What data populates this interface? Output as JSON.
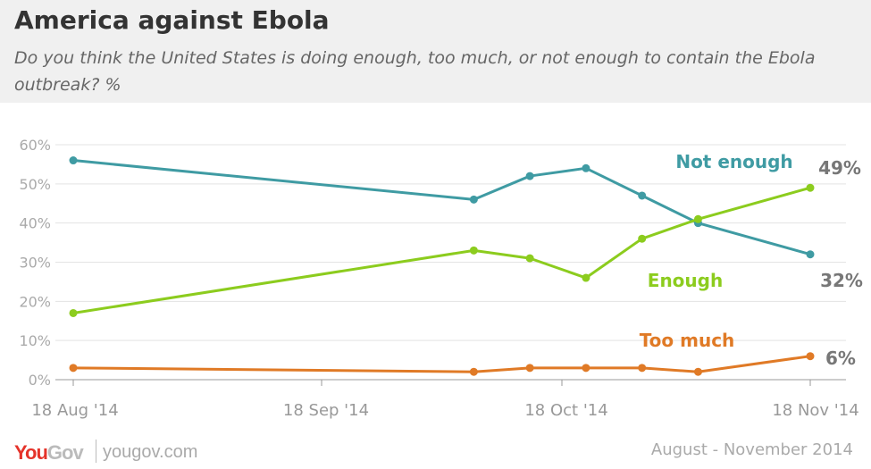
{
  "header": {
    "title": "America against Ebola",
    "subtitle": "Do you think the United States is doing enough, too much, or not enough to contain the Ebola outbreak? %"
  },
  "footer": {
    "logo_you": "You",
    "logo_gov": "Gov",
    "site": "yougov.com",
    "date_range": "August - November 2014"
  },
  "chart_data": {
    "type": "line",
    "title": "America against Ebola",
    "xlabel": "",
    "ylabel": "",
    "ylim": [
      0,
      60
    ],
    "yticks": [
      0,
      10,
      20,
      30,
      40,
      50,
      60
    ],
    "ytick_labels": [
      "0%",
      "10%",
      "20%",
      "30%",
      "40%",
      "50%",
      "60%"
    ],
    "xlim": [
      "2014-08-18",
      "2014-11-18"
    ],
    "xticks": [
      "2014-08-18",
      "2014-09-18",
      "2014-10-18",
      "2014-11-18"
    ],
    "xtick_labels": [
      "18 Aug '14",
      "18 Sep '14",
      "18 Oct '14",
      "18 Nov '14"
    ],
    "x": [
      "2014-08-18",
      "2014-10-07",
      "2014-10-14",
      "2014-10-21",
      "2014-10-28",
      "2014-11-04",
      "2014-11-18"
    ],
    "grid": true,
    "series": [
      {
        "name": "Not enough",
        "color": "#3f9ba3",
        "values": [
          56,
          46,
          52,
          54,
          47,
          40,
          32
        ],
        "end_label": "32%"
      },
      {
        "name": "Enough",
        "color": "#8ccc1e",
        "values": [
          17,
          33,
          31,
          26,
          36,
          41,
          49
        ],
        "end_label": "49%"
      },
      {
        "name": "Too much",
        "color": "#e07a26",
        "values": [
          3,
          2,
          3,
          3,
          3,
          2,
          6
        ],
        "end_label": "6%"
      }
    ]
  }
}
